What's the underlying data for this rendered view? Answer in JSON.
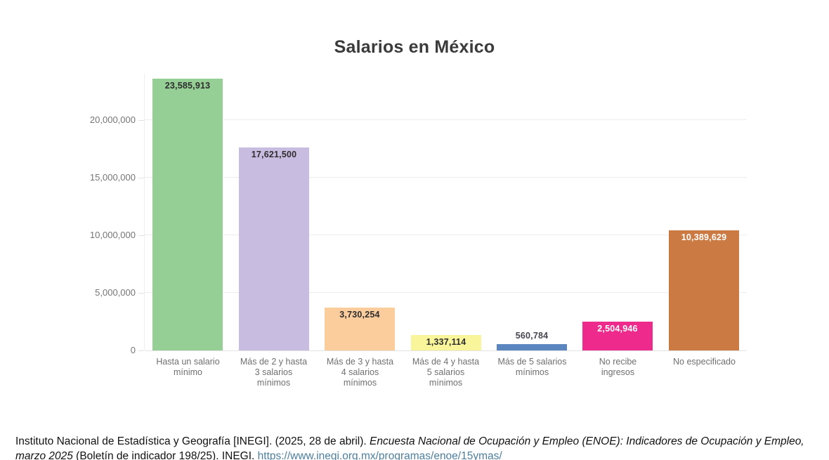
{
  "page": {
    "background": "#ffffff"
  },
  "chart_data": {
    "type": "bar",
    "title": "Salarios en México",
    "categories": [
      "Hasta un salario\nmínimo",
      "Más de 2 y hasta\n3 salarios\nmínimos",
      "Más de 3 y hasta\n4 salarios\nmínimos",
      "Más de 4 y hasta\n5 salarios\nmínimos",
      "Más de 5 salarios\nmínimos",
      "No recibe\ningresos",
      "No especificado"
    ],
    "values": [
      23585913,
      17621500,
      3730254,
      1337114,
      560784,
      2504946,
      10389629
    ],
    "value_labels": [
      "23,585,913",
      "17,621,500",
      "3,730,254",
      "1,337,114",
      "560,784",
      "2,504,946",
      "10,389,629"
    ],
    "bar_colors": [
      "#95cf95",
      "#c9bce1",
      "#fbcd9d",
      "#f8f59b",
      "#5b85be",
      "#ee2a8d",
      "#ca7a42"
    ],
    "value_label_colors": [
      "#2e2e2e",
      "#2e2e2e",
      "#2e2e2e",
      "#2e2e2e",
      "#44474d",
      "#ffffff",
      "#ffffff"
    ],
    "value_label_inside": [
      true,
      true,
      true,
      true,
      false,
      true,
      true
    ],
    "xlabel": "",
    "ylabel": "",
    "ylim": [
      0,
      24000000
    ],
    "yticks": [
      {
        "value": 0,
        "label": "0"
      },
      {
        "value": 5000000,
        "label": "5,000,000"
      },
      {
        "value": 10000000,
        "label": "10,000,000"
      },
      {
        "value": 15000000,
        "label": "15,000,000"
      },
      {
        "value": 20000000,
        "label": "20,000,000"
      }
    ],
    "grid": true,
    "legend": "none"
  },
  "citation": {
    "part1": "Instituto Nacional de Estadística y Geografía [INEGI]. (2025, 28 de abril). ",
    "part2_italic": "Encuesta Nacional de Ocupación y Empleo (ENOE): Indicadores de Ocupación y Empleo, marzo 2025",
    "part3": " (Boletín de indicador 198/25). INEGI. ",
    "link_text": "https://www.inegi.org.mx/programas/enoe/15ymas/",
    "link_color": "#4d7f9e"
  }
}
